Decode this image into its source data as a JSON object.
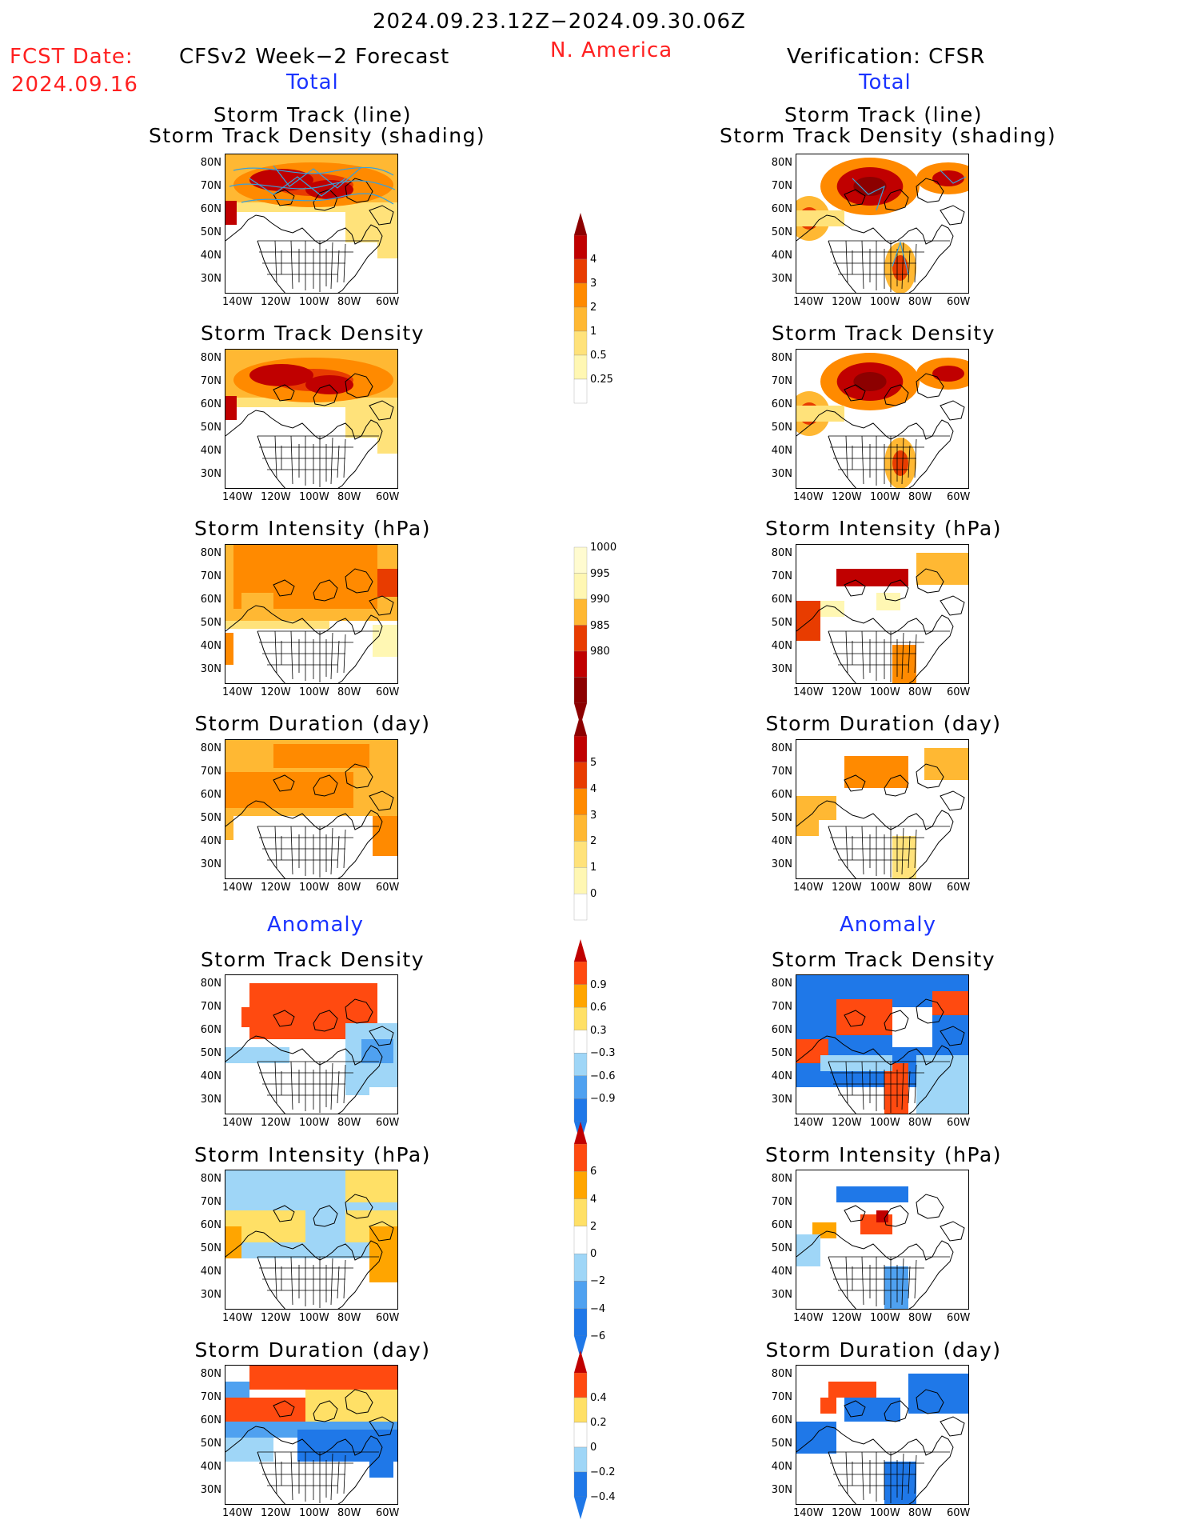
{
  "header": {
    "period": "2024.09.23.12Z−2024.09.30.06Z",
    "region": "N. America",
    "fcst_label": "FCST Date:",
    "fcst_date": "2024.09.16",
    "left_title": "CFSv2 Week−2 Forecast",
    "right_title": "Verification: CFSR",
    "total_label": "Total",
    "anomaly_label": "Anomaly"
  },
  "colors": {
    "title_red": "#ff2020",
    "section_blue": "#1a33ff",
    "total_scale": [
      "#fff7b3",
      "#ffe27a",
      "#ffb833",
      "#ff8a00",
      "#e83c00",
      "#c00000",
      "#8c0000"
    ],
    "anomaly_scale": [
      "#1f78e8",
      "#4fa1f0",
      "#9fd6f7",
      "#ffffff",
      "#ffe066",
      "#ffa500",
      "#ff4a10",
      "#c00000"
    ]
  },
  "map_axes": {
    "lat_ticks": [
      "80N",
      "70N",
      "60N",
      "50N",
      "40N",
      "30N"
    ],
    "lon_ticks": [
      "140W",
      "120W",
      "100W",
      "80W",
      "60W"
    ]
  },
  "panel_titles": {
    "track_line": "Storm Track (line)",
    "track_shading": "Storm Track Density (shading)",
    "density": "Storm Track Density",
    "intensity": "Storm Intensity (hPa)",
    "duration": "Storm Duration (day)"
  },
  "colorbars": {
    "density_total": [
      "4",
      "3",
      "2",
      "1",
      "0.5",
      "0.25"
    ],
    "intensity_total": [
      "1000",
      "995",
      "990",
      "985",
      "980"
    ],
    "duration_total": [
      "5",
      "4",
      "3",
      "2",
      "1",
      "0"
    ],
    "density_anom": [
      "0.9",
      "0.6",
      "0.3",
      "−0.3",
      "−0.6",
      "−0.9"
    ],
    "intensity_anom": [
      "6",
      "4",
      "2",
      "0",
      "−2",
      "−4",
      "−6"
    ],
    "duration_anom": [
      "0.4",
      "0.2",
      "0",
      "−0.2",
      "−0.4"
    ]
  }
}
